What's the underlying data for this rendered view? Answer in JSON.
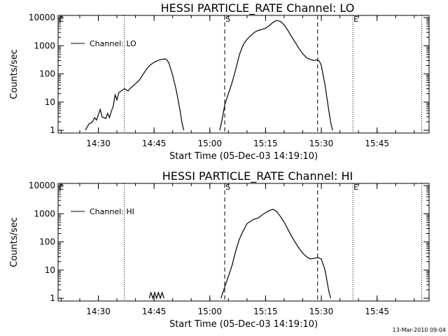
{
  "timestamp": "13-Mar-2010 09:04",
  "chart_data": [
    {
      "type": "line",
      "title": "HESSI PARTICLE_RATE Channel: LO",
      "xlabel": "Start Time (05-Dec-03 14:19:10)",
      "ylabel": "Counts/sec",
      "y_scale": "log",
      "xlim": [
        "14:19:10",
        "15:59:00"
      ],
      "ylim": [
        0.8,
        12000
      ],
      "xticks": [
        "14:30",
        "14:45",
        "15:00",
        "15:15",
        "15:30",
        "15:45"
      ],
      "yticks": [
        "1",
        "10",
        "100",
        "1000",
        "10000"
      ],
      "legend": {
        "position": "top-left",
        "entries": [
          "Channel: LO"
        ]
      },
      "markers": [
        {
          "time": "14:19:10",
          "label": "E",
          "style": "none"
        },
        {
          "time": "14:37:00",
          "label": "",
          "style": "dotted"
        },
        {
          "time": "15:04:00",
          "label": "S",
          "style": "dashed"
        },
        {
          "time": "15:29:00",
          "label": "",
          "style": "dashed"
        },
        {
          "time": "15:38:30",
          "label": "E",
          "style": "dotted"
        },
        {
          "time": "15:57:00",
          "label": "",
          "style": "dotted"
        }
      ],
      "series": [
        {
          "name": "Channel: LO",
          "segments": [
            [
              [
                "14:26:30",
                1
              ],
              [
                "14:27:30",
                1.7
              ],
              [
                "14:28:00",
                1.8
              ],
              [
                "14:28:30",
                2.1
              ],
              [
                "14:29:00",
                2.8
              ],
              [
                "14:29:30",
                2.3
              ],
              [
                "14:30:30",
                5.5
              ],
              [
                "14:31:00",
                3
              ],
              [
                "14:32:00",
                2.6
              ],
              [
                "14:32:30",
                4
              ],
              [
                "14:33:00",
                2.8
              ],
              [
                "14:33:30",
                4.8
              ],
              [
                "14:34:00",
                7
              ],
              [
                "14:34:30",
                18
              ],
              [
                "14:35:00",
                12
              ],
              [
                "14:35:30",
                22
              ],
              [
                "14:36:00",
                24
              ],
              [
                "14:37:00",
                30
              ],
              [
                "14:38:00",
                25
              ],
              [
                "14:38:30",
                30
              ],
              [
                "14:40:00",
                45
              ],
              [
                "14:41:00",
                60
              ],
              [
                "14:42:00",
                95
              ],
              [
                "14:43:00",
                150
              ],
              [
                "14:44:00",
                210
              ],
              [
                "14:45:00",
                260
              ],
              [
                "14:46:00",
                300
              ],
              [
                "14:47:00",
                330
              ],
              [
                "14:48:00",
                340
              ],
              [
                "14:48:30",
                310
              ],
              [
                "14:49:00",
                240
              ],
              [
                "14:50:00",
                90
              ],
              [
                "14:51:00",
                25
              ],
              [
                "14:52:00",
                5
              ],
              [
                "14:52:30",
                1.8
              ],
              [
                "14:53:00",
                1
              ]
            ],
            [
              [
                "15:02:40",
                1
              ],
              [
                "15:03:20",
                2.5
              ],
              [
                "15:04:00",
                8
              ],
              [
                "15:05:00",
                20
              ],
              [
                "15:06:00",
                50
              ],
              [
                "15:07:00",
                150
              ],
              [
                "15:08:00",
                500
              ],
              [
                "15:09:00",
                1100
              ],
              [
                "15:10:00",
                1700
              ],
              [
                "15:11:00",
                2300
              ],
              [
                "15:12:00",
                3000
              ],
              [
                "15:13:00",
                3500
              ],
              [
                "15:14:00",
                3800
              ],
              [
                "15:15:00",
                4200
              ],
              [
                "15:16:00",
                5200
              ],
              [
                "15:17:00",
                6800
              ],
              [
                "15:18:00",
                8000
              ],
              [
                "15:19:00",
                7300
              ],
              [
                "15:20:00",
                5500
              ],
              [
                "15:21:00",
                3500
              ],
              [
                "15:22:00",
                2100
              ],
              [
                "15:23:00",
                1300
              ],
              [
                "15:24:00",
                800
              ],
              [
                "15:25:00",
                520
              ],
              [
                "15:26:00",
                380
              ],
              [
                "15:27:00",
                330
              ],
              [
                "15:28:00",
                300
              ],
              [
                "15:29:00",
                320
              ],
              [
                "15:29:30",
                280
              ],
              [
                "15:30:00",
                200
              ],
              [
                "15:31:00",
                40
              ],
              [
                "15:32:00",
                5
              ],
              [
                "15:32:30",
                2
              ],
              [
                "15:33:00",
                1
              ]
            ]
          ]
        }
      ]
    },
    {
      "type": "line",
      "title": "HESSI PARTICLE_RATE Channel: HI",
      "xlabel": "Start Time (05-Dec-03 14:19:10)",
      "ylabel": "Counts/sec",
      "y_scale": "log",
      "xlim": [
        "14:19:10",
        "15:59:00"
      ],
      "ylim": [
        0.8,
        12000
      ],
      "xticks": [
        "14:30",
        "14:45",
        "15:00",
        "15:15",
        "15:30",
        "15:45"
      ],
      "yticks": [
        "1",
        "10",
        "100",
        "1000",
        "10000"
      ],
      "legend": {
        "position": "top-left",
        "entries": [
          "Channel: HI"
        ]
      },
      "markers": [
        {
          "time": "14:19:10",
          "label": "E",
          "style": "none"
        },
        {
          "time": "14:37:00",
          "label": "",
          "style": "dotted"
        },
        {
          "time": "15:04:00",
          "label": "S",
          "style": "dashed"
        },
        {
          "time": "15:29:00",
          "label": "",
          "style": "dashed"
        },
        {
          "time": "15:38:30",
          "label": "E",
          "style": "dotted"
        },
        {
          "time": "15:57:00",
          "label": "",
          "style": "dotted"
        }
      ],
      "series": [
        {
          "name": "Channel: HI",
          "segments": [
            [
              [
                "14:43:40",
                1
              ],
              [
                "14:44:10",
                1.6
              ],
              [
                "14:44:40",
                1
              ],
              [
                "14:45:10",
                1.6
              ],
              [
                "14:45:40",
                1
              ],
              [
                "14:46:10",
                1.6
              ],
              [
                "14:46:40",
                1
              ],
              [
                "14:47:10",
                1.6
              ],
              [
                "14:47:40",
                1
              ]
            ],
            [
              [
                "15:03:00",
                1
              ],
              [
                "15:04:00",
                2.5
              ],
              [
                "15:05:00",
                6
              ],
              [
                "15:06:00",
                15
              ],
              [
                "15:07:00",
                50
              ],
              [
                "15:08:00",
                130
              ],
              [
                "15:09:00",
                250
              ],
              [
                "15:10:00",
                450
              ],
              [
                "15:11:00",
                550
              ],
              [
                "15:12:00",
                650
              ],
              [
                "15:13:00",
                700
              ],
              [
                "15:14:00",
                900
              ],
              [
                "15:15:00",
                1100
              ],
              [
                "15:16:00",
                1300
              ],
              [
                "15:17:00",
                1450
              ],
              [
                "15:18:00",
                1200
              ],
              [
                "15:19:00",
                800
              ],
              [
                "15:20:00",
                500
              ],
              [
                "15:21:00",
                280
              ],
              [
                "15:22:00",
                160
              ],
              [
                "15:23:00",
                95
              ],
              [
                "15:24:00",
                60
              ],
              [
                "15:25:00",
                40
              ],
              [
                "15:26:00",
                30
              ],
              [
                "15:27:00",
                25
              ],
              [
                "15:28:00",
                26
              ],
              [
                "15:29:00",
                28
              ],
              [
                "15:30:00",
                25
              ],
              [
                "15:31:00",
                10
              ],
              [
                "15:32:00",
                1.8
              ],
              [
                "15:32:30",
                1
              ]
            ]
          ]
        }
      ]
    }
  ]
}
